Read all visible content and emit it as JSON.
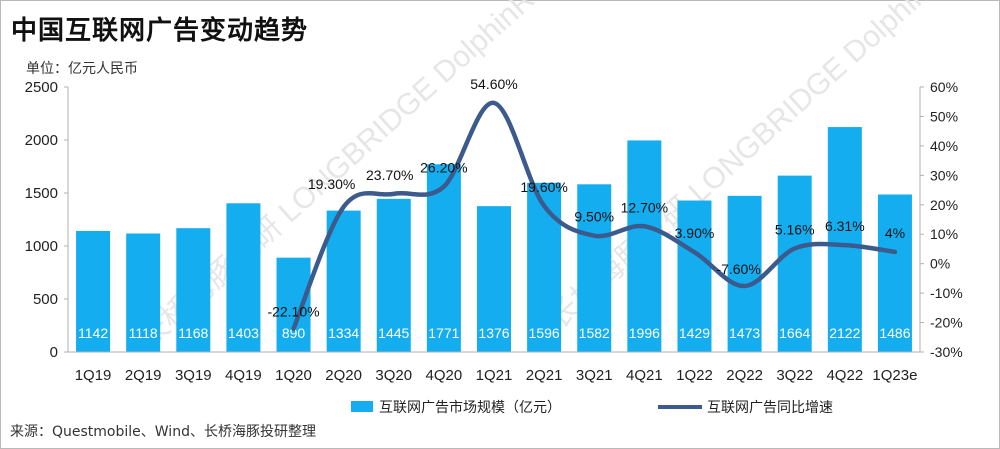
{
  "chart_data": {
    "type": "bar+line",
    "title": "中国互联网广告变动趋势",
    "unit_label": "单位：亿元人民币",
    "source": "来源：Questmobile、Wind、长桥海豚投研整理",
    "categories": [
      "1Q19",
      "2Q19",
      "3Q19",
      "4Q19",
      "1Q20",
      "2Q20",
      "3Q20",
      "4Q20",
      "1Q21",
      "2Q21",
      "3Q21",
      "4Q21",
      "1Q22",
      "2Q22",
      "3Q22",
      "4Q22",
      "1Q23e"
    ],
    "series": [
      {
        "name": "互联网广告市场规模（亿元）",
        "type": "bar",
        "axis": "left",
        "color": "#14aef0",
        "values": [
          1142,
          1118,
          1168,
          1403,
          890,
          1334,
          1445,
          1771,
          1376,
          1596,
          1582,
          1996,
          1429,
          1473,
          1664,
          2122,
          1486
        ],
        "labels": [
          "1142",
          "1118",
          "1168",
          "1403",
          "890",
          "1334",
          "1445",
          "1771",
          "1376",
          "1596",
          "1582",
          "1996",
          "1429",
          "1473",
          "1664",
          "2122",
          "1486"
        ]
      },
      {
        "name": "互联网广告同比增速",
        "type": "line",
        "axis": "right",
        "color": "#3c5a8c",
        "values": [
          null,
          null,
          null,
          null,
          -22.1,
          19.3,
          23.7,
          26.2,
          54.6,
          19.6,
          9.5,
          12.7,
          3.9,
          -7.6,
          5.16,
          6.31,
          4
        ],
        "labels": [
          "",
          "",
          "",
          "",
          "-22.10%",
          "19.30%",
          "23.70%",
          "26.20%",
          "54.60%",
          "19.60%",
          "9.50%",
          "12.70%",
          "3.90%",
          "-7.60%",
          "5.16%",
          "6.31%",
          "4%"
        ]
      }
    ],
    "y_left": {
      "min": 0,
      "max": 2500,
      "ticks": [
        "0",
        "500",
        "1000",
        "1500",
        "2000",
        "2500"
      ]
    },
    "y_right": {
      "min": -30,
      "max": 60,
      "ticks": [
        "-30%",
        "-20%",
        "-10%",
        "0%",
        "10%",
        "20%",
        "30%",
        "40%",
        "50%",
        "60%"
      ]
    },
    "legend": {
      "position": "bottom"
    },
    "grid": false,
    "watermark": "长桥海豚投研 LONGBRIDGE DolphinResearch"
  }
}
